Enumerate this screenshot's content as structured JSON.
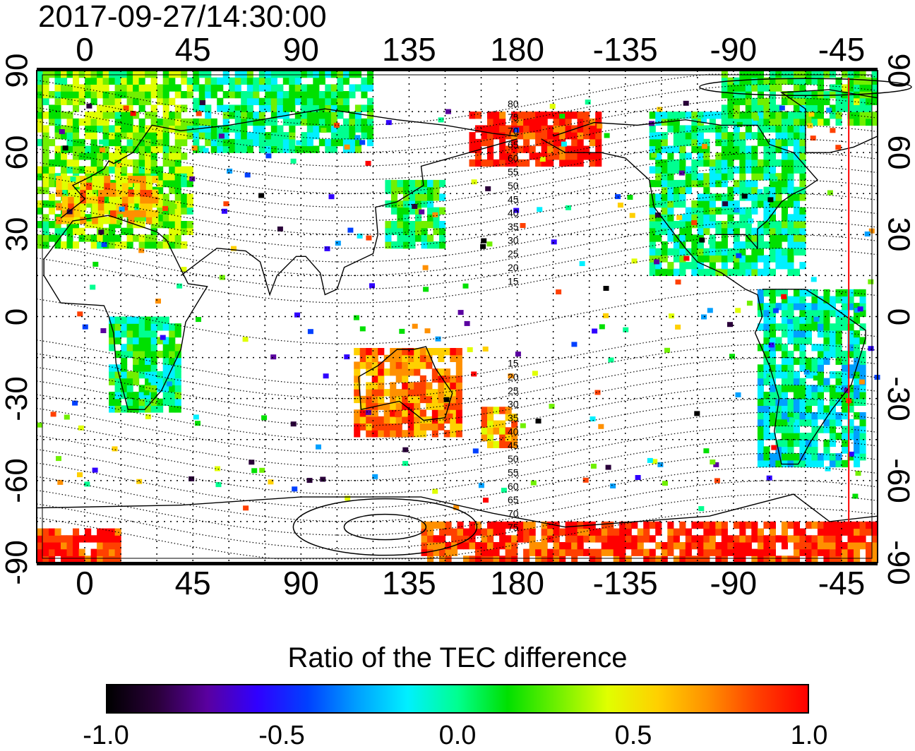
{
  "title": "2017-09-27/14:30:00",
  "map": {
    "lon_ticks_top": [
      "0",
      "45",
      "90",
      "135",
      "180",
      "-135",
      "-90",
      "-45"
    ],
    "lon_ticks_bottom": [
      "0",
      "45",
      "90",
      "135",
      "180",
      "-135",
      "-90",
      "-45"
    ],
    "lat_ticks_left": [
      "90",
      "60",
      "30",
      "0",
      "-30",
      "-60",
      "-90"
    ],
    "lat_ticks_right": [
      "90",
      "60",
      "30",
      "0",
      "-30",
      "-60",
      "-90"
    ],
    "lon_range": [
      -20,
      330
    ],
    "lat_range": [
      -90,
      90
    ],
    "grid": true,
    "magnetic_lat_labels_north": [
      "80",
      "75",
      "70",
      "65",
      "60",
      "55",
      "50",
      "45",
      "40",
      "35",
      "30",
      "25",
      "20",
      "15"
    ],
    "magnetic_lat_labels_south": [
      "15",
      "20",
      "25",
      "30",
      "35",
      "40",
      "45",
      "50",
      "55",
      "60",
      "65",
      "70",
      "75"
    ],
    "terminator_color": "#ff0000",
    "data_regions": [
      {
        "name": "europe",
        "lon": [
          -20,
          45
        ],
        "lat": [
          25,
          88
        ],
        "value": 0.25
      },
      {
        "name": "iberia-italy",
        "lon": [
          -12,
          30
        ],
        "lat": [
          34,
          50
        ],
        "value": 0.6
      },
      {
        "name": "north-asia-arctic",
        "lon": [
          45,
          120
        ],
        "lat": [
          60,
          88
        ],
        "value": 0.05
      },
      {
        "name": "japan",
        "lon": [
          125,
          150
        ],
        "lat": [
          25,
          50
        ],
        "value": 0.1
      },
      {
        "name": "australia",
        "lon": [
          112,
          155
        ],
        "lat": [
          -44,
          -12
        ],
        "value": 0.75
      },
      {
        "name": "new-zealand",
        "lon": [
          165,
          180
        ],
        "lat": [
          -48,
          -34
        ],
        "value": 0.65
      },
      {
        "name": "africa",
        "lon": [
          10,
          40
        ],
        "lat": [
          -35,
          0
        ],
        "value": 0.05
      },
      {
        "name": "alaska-east-siberia",
        "lon": [
          160,
          215
        ],
        "lat": [
          55,
          75
        ],
        "value": 0.95
      },
      {
        "name": "north-america",
        "lon": [
          235,
          300
        ],
        "lat": [
          15,
          75
        ],
        "value": 0.05
      },
      {
        "name": "greenland-arctic",
        "lon": [
          265,
          330
        ],
        "lat": [
          70,
          90
        ],
        "value": 0.15
      },
      {
        "name": "south-america",
        "lon": [
          280,
          325
        ],
        "lat": [
          -55,
          10
        ],
        "value": -0.05
      },
      {
        "name": "antarctica-west",
        "lon": [
          -20,
          15
        ],
        "lat": [
          -90,
          -78
        ],
        "value": 0.95
      },
      {
        "name": "antarctica-east",
        "lon": [
          140,
          330
        ],
        "lat": [
          -90,
          -75
        ],
        "value": 0.9
      }
    ]
  },
  "colorbar": {
    "title": "Ratio of the TEC difference",
    "ticks": [
      "-1.0",
      "-0.5",
      "0.0",
      "0.5",
      "1.0"
    ],
    "range": [
      -1.0,
      1.0
    ],
    "colors": [
      "#000000",
      "#2a003a",
      "#5a00a0",
      "#3000ff",
      "#0040ff",
      "#00a0ff",
      "#00f0ff",
      "#00ff90",
      "#00e000",
      "#70f000",
      "#e0ff00",
      "#ffd000",
      "#ff9000",
      "#ff4000",
      "#ff0000"
    ]
  }
}
